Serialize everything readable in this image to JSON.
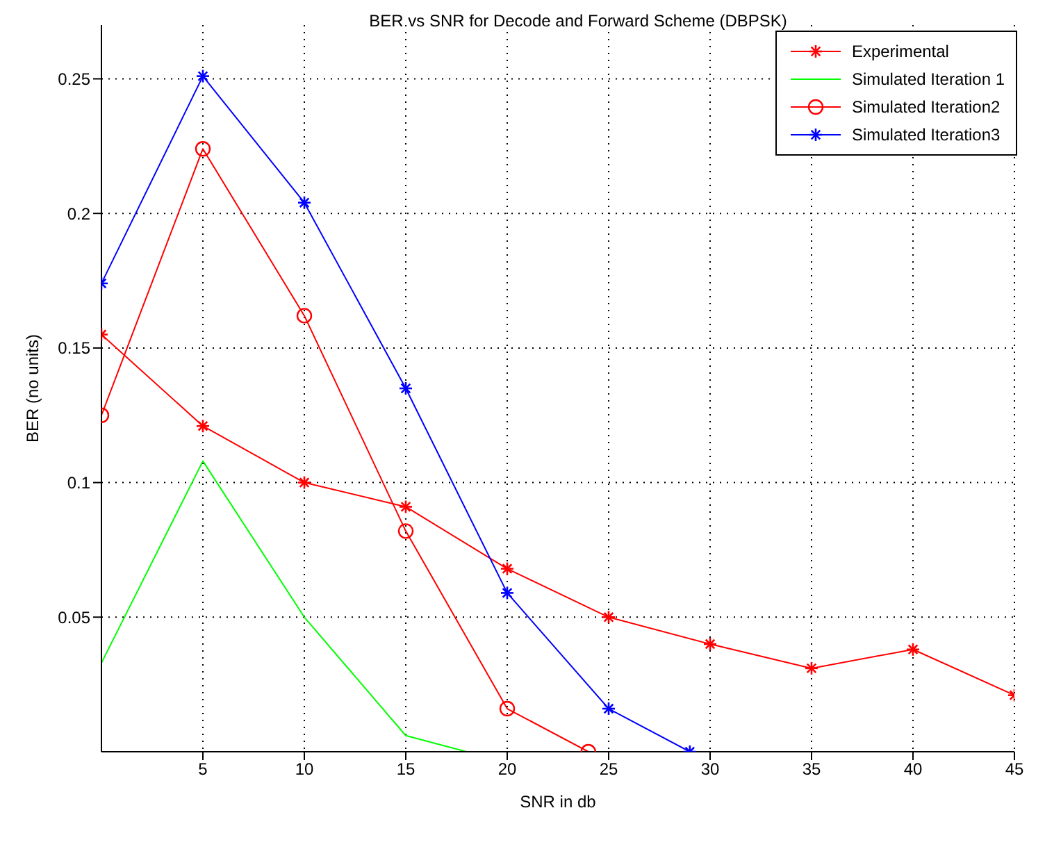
{
  "chart_data": {
    "type": "line",
    "title": "BER vs SNR for Decode and Forward Scheme (DBPSK)",
    "xlabel": "SNR in db",
    "ylabel": "BER (no units)",
    "xlim": [
      0,
      45
    ],
    "xticks": [
      5,
      10,
      15,
      20,
      25,
      30,
      35,
      40,
      45
    ],
    "ylim": [
      0,
      0.27
    ],
    "yticks": [
      0.05,
      0.1,
      0.15,
      0.2,
      0.25
    ],
    "grid": true,
    "legend": "top right",
    "line_style": "solid",
    "series": [
      {
        "name": "Experimental",
        "color": "#ff0000",
        "marker": "cross",
        "x": [
          0,
          5,
          10,
          15,
          20,
          25,
          30,
          35,
          40,
          45
        ],
        "values": [
          0.155,
          0.121,
          0.1,
          0.091,
          0.068,
          0.05,
          0.04,
          0.031,
          0.038,
          0.021
        ]
      },
      {
        "name": "Simulated Iteration 1",
        "color": "#00ff00",
        "marker": "none",
        "x": [
          0,
          5,
          10,
          15,
          18
        ],
        "values": [
          0.033,
          0.108,
          0.05,
          0.006,
          0
        ]
      },
      {
        "name": "Simulated Iteration2",
        "color": "#ff0000",
        "marker": "circle",
        "x": [
          0,
          5,
          10,
          15,
          20,
          24
        ],
        "values": [
          0.125,
          0.224,
          0.162,
          0.082,
          0.016,
          0
        ]
      },
      {
        "name": "Simulated Iteration3",
        "color": "#0000ff",
        "marker": "cross",
        "x": [
          0,
          5,
          10,
          15,
          20,
          25,
          29
        ],
        "values": [
          0.174,
          0.251,
          0.204,
          0.135,
          0.059,
          0.016,
          0
        ]
      }
    ]
  }
}
